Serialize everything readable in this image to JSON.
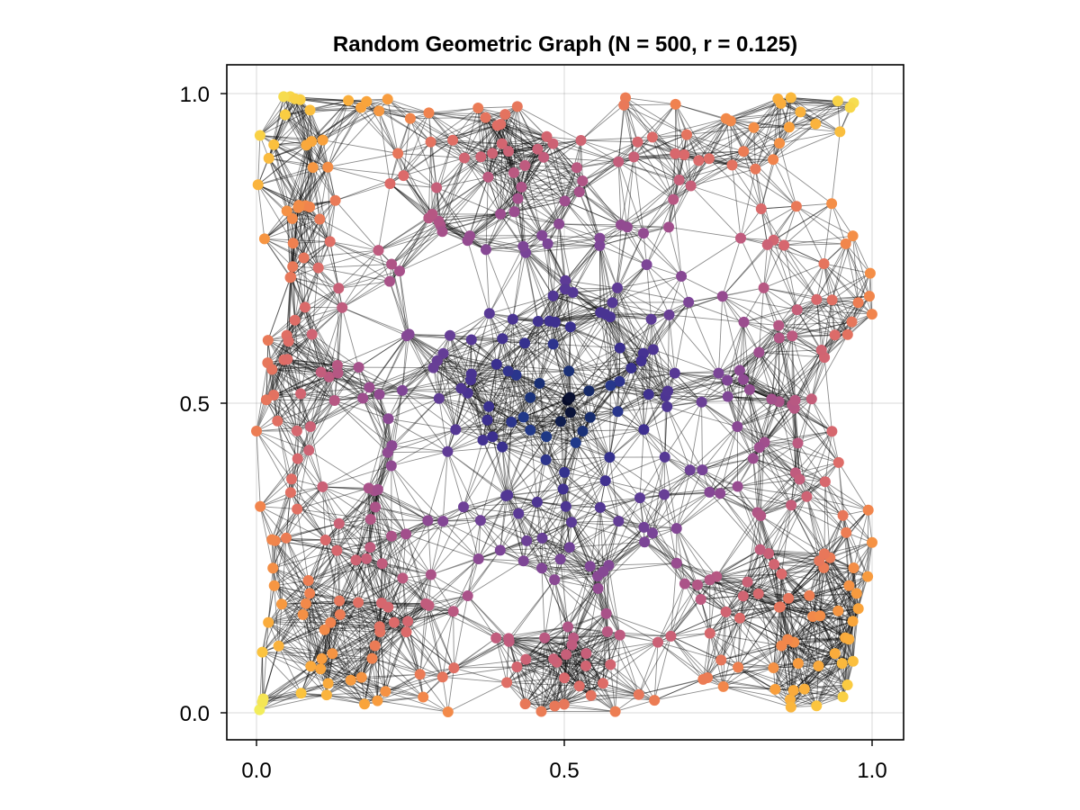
{
  "chart_data": {
    "type": "scatter",
    "title": "Random Geometric Graph (N = 500, r = 0.125)",
    "xlabel": "",
    "ylabel": "",
    "xlim": [
      -0.05,
      1.05
    ],
    "ylim": [
      -0.05,
      1.05
    ],
    "xticks": [
      0.0,
      0.5,
      1.0
    ],
    "yticks": [
      0.0,
      0.5,
      1.0
    ],
    "xtick_labels": [
      "0.0",
      "0.5",
      "1.0"
    ],
    "ytick_labels": [
      "0.0",
      "0.5",
      "1.0"
    ],
    "grid": true,
    "graph": {
      "node_count": 500,
      "connection_radius": 0.125,
      "node_color": "distance from center (0.5, 0.5)",
      "colormap": [
        "#03051a",
        "#1f3a8a",
        "#3b2f8f",
        "#5a3a96",
        "#7b4597",
        "#9c4d8f",
        "#bd5a80",
        "#dc6a6a",
        "#f0814f",
        "#f9a13b",
        "#fbc83f",
        "#f1f25e"
      ],
      "edge_color": "#000000",
      "edge_opacity": 0.45,
      "sample_nodes": [
        {
          "x": 0.005,
          "y": 0.005
        },
        {
          "x": 0.055,
          "y": 0.995
        },
        {
          "x": 0.97,
          "y": 0.985
        },
        {
          "x": 0.96,
          "y": 0.045
        },
        {
          "x": 0.505,
          "y": 0.505
        },
        {
          "x": 0.51,
          "y": 0.485
        },
        {
          "x": 0.54,
          "y": 0.52
        },
        {
          "x": 0.53,
          "y": 0.455
        },
        {
          "x": 0.0,
          "y": 0.455
        },
        {
          "x": 1.0,
          "y": 0.275
        }
      ]
    }
  }
}
